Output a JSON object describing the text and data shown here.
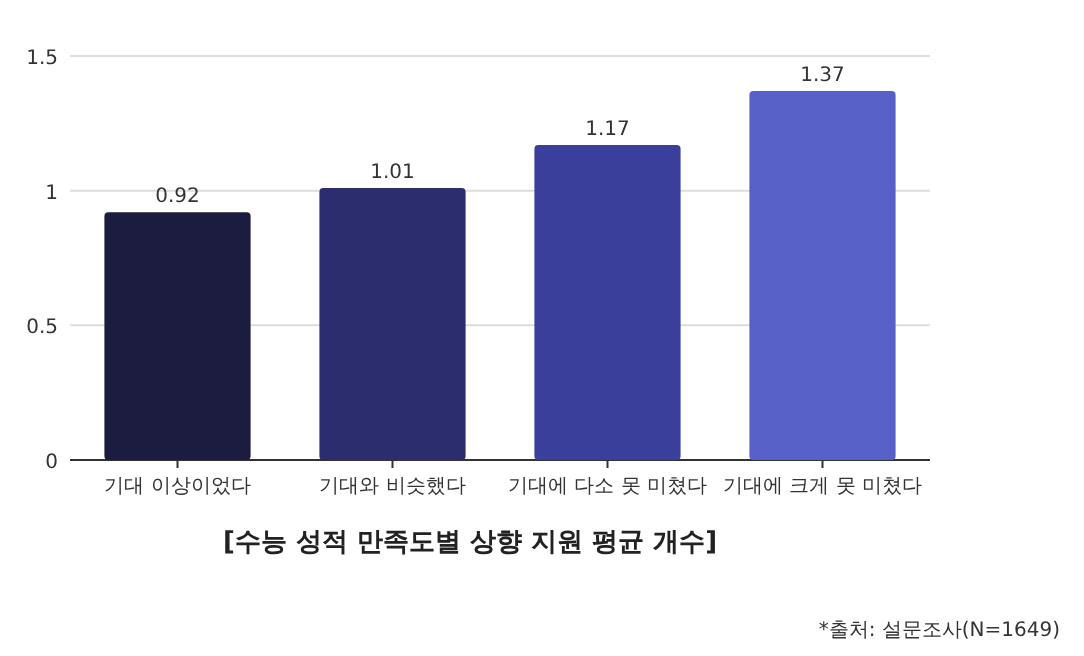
{
  "chart_data": {
    "type": "bar",
    "title": "[수능 성적 만족도별 상향 지원 평균 개수]",
    "categories": [
      "기대 이상이었다",
      "기대와 비슷했다",
      "기대에 다소 못 미쳤다",
      "기대에 크게 못 미쳤다"
    ],
    "values": [
      0.92,
      1.01,
      1.17,
      1.37
    ],
    "colors": [
      "#1b1c3f",
      "#2b2d6e",
      "#3b3f9c",
      "#5760c6"
    ],
    "ylim": [
      0,
      1.5
    ],
    "yticks": [
      0,
      {
        "value": 0.5,
        "label": "0.5"
      },
      1,
      {
        "value": 1.5,
        "label": "1.5"
      }
    ],
    "grid": "y",
    "data_labels": true,
    "annotations": [
      "*출처: 설문조사(N=1649)"
    ]
  }
}
